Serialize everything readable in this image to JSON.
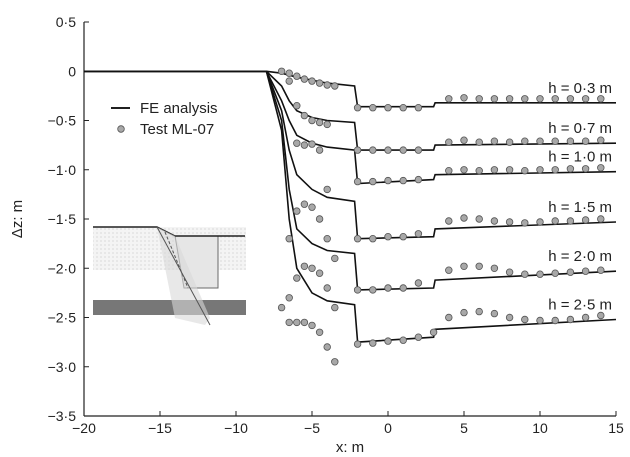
{
  "chart_data": {
    "type": "line",
    "xlabel": "x: m",
    "ylabel": "Δz: m",
    "xlim": [
      -20,
      15
    ],
    "ylim": [
      -3.5,
      0.5
    ],
    "xticks": [
      -20,
      -15,
      -10,
      -5,
      0,
      5,
      10,
      15
    ],
    "xtick_labels": [
      "−20",
      "−15",
      "−10",
      "−5",
      "0",
      "5",
      "10",
      "15"
    ],
    "yticks": [
      0.5,
      0,
      -0.5,
      -1.0,
      -1.5,
      -2.0,
      -2.5,
      -3.0,
      -3.5
    ],
    "ytick_labels": [
      "0·5",
      "0",
      "−0·5",
      "−1·0",
      "−1·5",
      "−2·0",
      "−2·5",
      "−3·0",
      "−3·5"
    ],
    "grid": false,
    "legend": {
      "position": "left",
      "entries": [
        {
          "label": "FE analysis",
          "marker": "line",
          "color": "#000000"
        },
        {
          "label": "Test ML-07",
          "marker": "circle",
          "color": "#9a9a9a"
        }
      ]
    },
    "series": [
      {
        "label": "h = 0·3 m",
        "fe": [
          [
            -20,
            0
          ],
          [
            -10,
            0
          ],
          [
            -8,
            0
          ],
          [
            -7,
            -0.02
          ],
          [
            -6,
            -0.06
          ],
          [
            -5,
            -0.09
          ],
          [
            -4,
            -0.12
          ],
          [
            -2.2,
            -0.15
          ],
          [
            -2,
            -0.36
          ],
          [
            3,
            -0.36
          ],
          [
            3.1,
            -0.32
          ],
          [
            15,
            -0.32
          ]
        ],
        "test": [
          [
            -7,
            0
          ],
          [
            -6.5,
            -0.02
          ],
          [
            -6,
            -0.05
          ],
          [
            -5.5,
            -0.08
          ],
          [
            -5,
            -0.1
          ],
          [
            -4.5,
            -0.12
          ],
          [
            -4,
            -0.14
          ],
          [
            -3.5,
            -0.15
          ],
          [
            -2,
            -0.37
          ],
          [
            -1,
            -0.37
          ],
          [
            0,
            -0.37
          ],
          [
            1,
            -0.37
          ],
          [
            2,
            -0.37
          ],
          [
            4,
            -0.28
          ],
          [
            5,
            -0.27
          ],
          [
            6,
            -0.28
          ],
          [
            7,
            -0.28
          ],
          [
            8,
            -0.28
          ],
          [
            9,
            -0.28
          ],
          [
            10,
            -0.28
          ],
          [
            11,
            -0.28
          ],
          [
            12,
            -0.28
          ],
          [
            13,
            -0.28
          ],
          [
            14,
            -0.28
          ]
        ]
      },
      {
        "label": "h = 0·7 m",
        "fe": [
          [
            -20,
            0
          ],
          [
            -8,
            0
          ],
          [
            -7,
            -0.15
          ],
          [
            -6.5,
            -0.3
          ],
          [
            -6,
            -0.4
          ],
          [
            -5,
            -0.47
          ],
          [
            -4,
            -0.5
          ],
          [
            -2.2,
            -0.52
          ],
          [
            -2,
            -0.8
          ],
          [
            3,
            -0.8
          ],
          [
            3.1,
            -0.75
          ],
          [
            15,
            -0.73
          ]
        ],
        "test": [
          [
            -6.5,
            -0.1
          ],
          [
            -6,
            -0.35
          ],
          [
            -5.5,
            -0.45
          ],
          [
            -5,
            -0.5
          ],
          [
            -4.5,
            -0.52
          ],
          [
            -4,
            -0.54
          ],
          [
            -2,
            -0.8
          ],
          [
            -1,
            -0.8
          ],
          [
            0,
            -0.8
          ],
          [
            1,
            -0.8
          ],
          [
            2,
            -0.8
          ],
          [
            4,
            -0.72
          ],
          [
            5,
            -0.7
          ],
          [
            6,
            -0.72
          ],
          [
            7,
            -0.71
          ],
          [
            8,
            -0.72
          ],
          [
            9,
            -0.71
          ],
          [
            10,
            -0.71
          ],
          [
            11,
            -0.71
          ],
          [
            12,
            -0.71
          ],
          [
            13,
            -0.71
          ],
          [
            14,
            -0.7
          ]
        ]
      },
      {
        "label": "h = 1·0 m",
        "fe": [
          [
            -20,
            0
          ],
          [
            -8,
            0
          ],
          [
            -7,
            -0.3
          ],
          [
            -6.5,
            -0.5
          ],
          [
            -6,
            -0.65
          ],
          [
            -5,
            -0.73
          ],
          [
            -4,
            -0.77
          ],
          [
            -2.2,
            -0.8
          ],
          [
            -2,
            -1.14
          ],
          [
            3,
            -1.1
          ],
          [
            3.1,
            -1.05
          ],
          [
            15,
            -1.02
          ]
        ],
        "test": [
          [
            -6,
            -0.73
          ],
          [
            -5.5,
            -0.75
          ],
          [
            -5,
            -0.74
          ],
          [
            -4.5,
            -0.8
          ],
          [
            -4,
            -1.2
          ],
          [
            -2,
            -1.12
          ],
          [
            -1,
            -1.12
          ],
          [
            0,
            -1.11
          ],
          [
            1,
            -1.11
          ],
          [
            2,
            -1.1
          ],
          [
            4,
            -1.01
          ],
          [
            5,
            -1.0
          ],
          [
            6,
            -1.01
          ],
          [
            7,
            -1.0
          ],
          [
            8,
            -1.0
          ],
          [
            9,
            -1.01
          ],
          [
            10,
            -1.0
          ],
          [
            11,
            -1.0
          ],
          [
            12,
            -0.99
          ],
          [
            13,
            -0.99
          ],
          [
            14,
            -0.98
          ]
        ]
      },
      {
        "label": "h = 1·5 m",
        "fe": [
          [
            -20,
            0
          ],
          [
            -8,
            0
          ],
          [
            -7,
            -0.4
          ],
          [
            -6.5,
            -0.8
          ],
          [
            -6,
            -1.05
          ],
          [
            -5,
            -1.2
          ],
          [
            -4,
            -1.28
          ],
          [
            -2.2,
            -1.32
          ],
          [
            -2,
            -1.7
          ],
          [
            3,
            -1.68
          ],
          [
            3.1,
            -1.6
          ],
          [
            15,
            -1.53
          ]
        ],
        "test": [
          [
            -6.5,
            -1.7
          ],
          [
            -6,
            -1.42
          ],
          [
            -5.5,
            -1.35
          ],
          [
            -5,
            -1.38
          ],
          [
            -4.5,
            -1.5
          ],
          [
            -4,
            -1.7
          ],
          [
            -3.5,
            -1.9
          ],
          [
            -2,
            -1.7
          ],
          [
            -1,
            -1.7
          ],
          [
            0,
            -1.68
          ],
          [
            1,
            -1.68
          ],
          [
            2,
            -1.65
          ],
          [
            4,
            -1.52
          ],
          [
            5,
            -1.49
          ],
          [
            6,
            -1.5
          ],
          [
            7,
            -1.52
          ],
          [
            8,
            -1.53
          ],
          [
            9,
            -1.54
          ],
          [
            10,
            -1.53
          ],
          [
            11,
            -1.52
          ],
          [
            12,
            -1.52
          ],
          [
            13,
            -1.51
          ],
          [
            14,
            -1.5
          ]
        ]
      },
      {
        "label": "h = 2·0 m",
        "fe": [
          [
            -20,
            0
          ],
          [
            -8,
            0
          ],
          [
            -7,
            -0.5
          ],
          [
            -6.5,
            -1.2
          ],
          [
            -6,
            -1.6
          ],
          [
            -5,
            -1.75
          ],
          [
            -4,
            -1.82
          ],
          [
            -2.2,
            -1.85
          ],
          [
            -2,
            -2.22
          ],
          [
            3,
            -2.2
          ],
          [
            3.1,
            -2.12
          ],
          [
            15,
            -2.03
          ]
        ],
        "test": [
          [
            -7,
            -2.4
          ],
          [
            -6.5,
            -2.3
          ],
          [
            -6,
            -2.1
          ],
          [
            -5.5,
            -1.98
          ],
          [
            -5,
            -2.0
          ],
          [
            -4.5,
            -2.05
          ],
          [
            -4,
            -2.2
          ],
          [
            -3.5,
            -2.4
          ],
          [
            -2,
            -2.22
          ],
          [
            -1,
            -2.22
          ],
          [
            0,
            -2.2
          ],
          [
            1,
            -2.2
          ],
          [
            2,
            -2.15
          ],
          [
            4,
            -2.02
          ],
          [
            5,
            -1.98
          ],
          [
            6,
            -1.98
          ],
          [
            7,
            -2.0
          ],
          [
            8,
            -2.04
          ],
          [
            9,
            -2.06
          ],
          [
            10,
            -2.06
          ],
          [
            11,
            -2.05
          ],
          [
            12,
            -2.04
          ],
          [
            13,
            -2.03
          ],
          [
            14,
            -2.02
          ]
        ]
      },
      {
        "label": "h = 2·5 m",
        "fe": [
          [
            -20,
            0
          ],
          [
            -8,
            0
          ],
          [
            -7,
            -0.6
          ],
          [
            -6.5,
            -1.5
          ],
          [
            -6,
            -2.0
          ],
          [
            -5,
            -2.25
          ],
          [
            -4,
            -2.33
          ],
          [
            -2.2,
            -2.37
          ],
          [
            -2,
            -2.75
          ],
          [
            3,
            -2.7
          ],
          [
            3.1,
            -2.62
          ],
          [
            15,
            -2.52
          ]
        ],
        "test": [
          [
            -6.5,
            -2.55
          ],
          [
            -6,
            -2.55
          ],
          [
            -5.5,
            -2.55
          ],
          [
            -5,
            -2.58
          ],
          [
            -4.5,
            -2.65
          ],
          [
            -4,
            -2.8
          ],
          [
            -3.5,
            -2.95
          ],
          [
            -2,
            -2.77
          ],
          [
            -1,
            -2.76
          ],
          [
            0,
            -2.74
          ],
          [
            1,
            -2.73
          ],
          [
            2,
            -2.7
          ],
          [
            3,
            -2.65
          ],
          [
            4,
            -2.5
          ],
          [
            5,
            -2.45
          ],
          [
            6,
            -2.44
          ],
          [
            7,
            -2.46
          ],
          [
            8,
            -2.5
          ],
          [
            9,
            -2.52
          ],
          [
            10,
            -2.53
          ],
          [
            11,
            -2.53
          ],
          [
            12,
            -2.52
          ],
          [
            13,
            -2.5
          ],
          [
            14,
            -2.48
          ]
        ]
      }
    ]
  }
}
